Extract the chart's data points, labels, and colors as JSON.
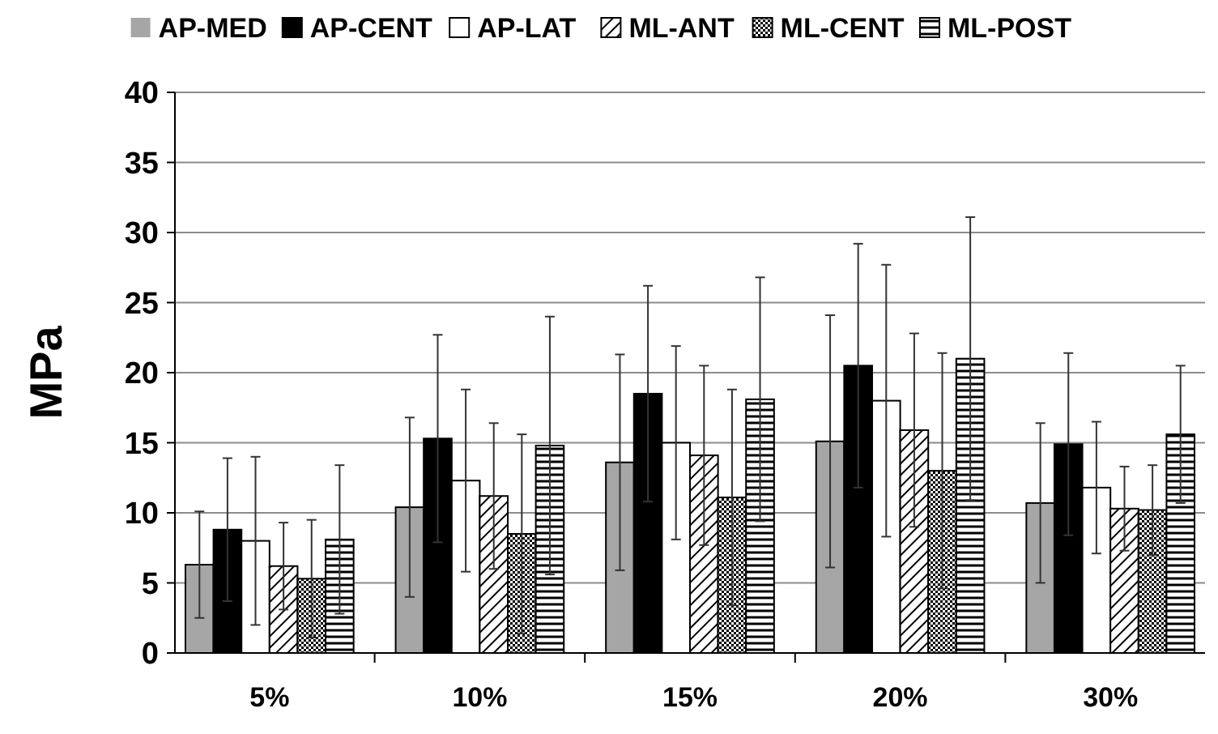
{
  "chart_data": {
    "type": "bar",
    "ylabel": "MPa",
    "categories": [
      "5%",
      "10%",
      "15%",
      "20%",
      "30%"
    ],
    "ylim": [
      0,
      40
    ],
    "yticks": [
      0,
      5,
      10,
      15,
      20,
      25,
      30,
      35,
      40
    ],
    "grid": "y",
    "legend": "top",
    "series": [
      {
        "name": "AP-MED",
        "color": "#a6a6a6",
        "values": [
          6.3,
          10.4,
          13.6,
          15.1,
          10.7
        ],
        "errors": [
          3.8,
          6.4,
          7.7,
          9.0,
          5.7
        ]
      },
      {
        "name": "AP-CENT",
        "color": "#000000",
        "values": [
          8.8,
          15.3,
          18.5,
          20.5,
          14.9
        ],
        "errors": [
          5.1,
          7.4,
          7.7,
          8.7,
          6.5
        ]
      },
      {
        "name": "AP-LAT",
        "color": "#ffffff",
        "values": [
          8.0,
          12.3,
          15.0,
          18.0,
          11.8
        ],
        "errors": [
          6.0,
          6.5,
          6.9,
          9.7,
          4.7
        ]
      },
      {
        "name": "ML-ANT",
        "color": "#000000",
        "values": [
          6.2,
          11.2,
          14.1,
          15.9,
          10.3
        ],
        "errors": [
          3.1,
          5.2,
          6.4,
          6.9,
          3.0
        ]
      },
      {
        "name": "ML-CENT",
        "color": "#000000",
        "values": [
          5.3,
          8.5,
          11.1,
          13.0,
          10.2
        ],
        "errors": [
          4.2,
          7.1,
          7.7,
          8.4,
          3.2
        ]
      },
      {
        "name": "ML-POST",
        "color": "#000000",
        "values": [
          8.1,
          14.8,
          18.1,
          21.0,
          15.6
        ],
        "errors": [
          5.3,
          9.2,
          8.7,
          10.1,
          4.9
        ]
      }
    ]
  }
}
